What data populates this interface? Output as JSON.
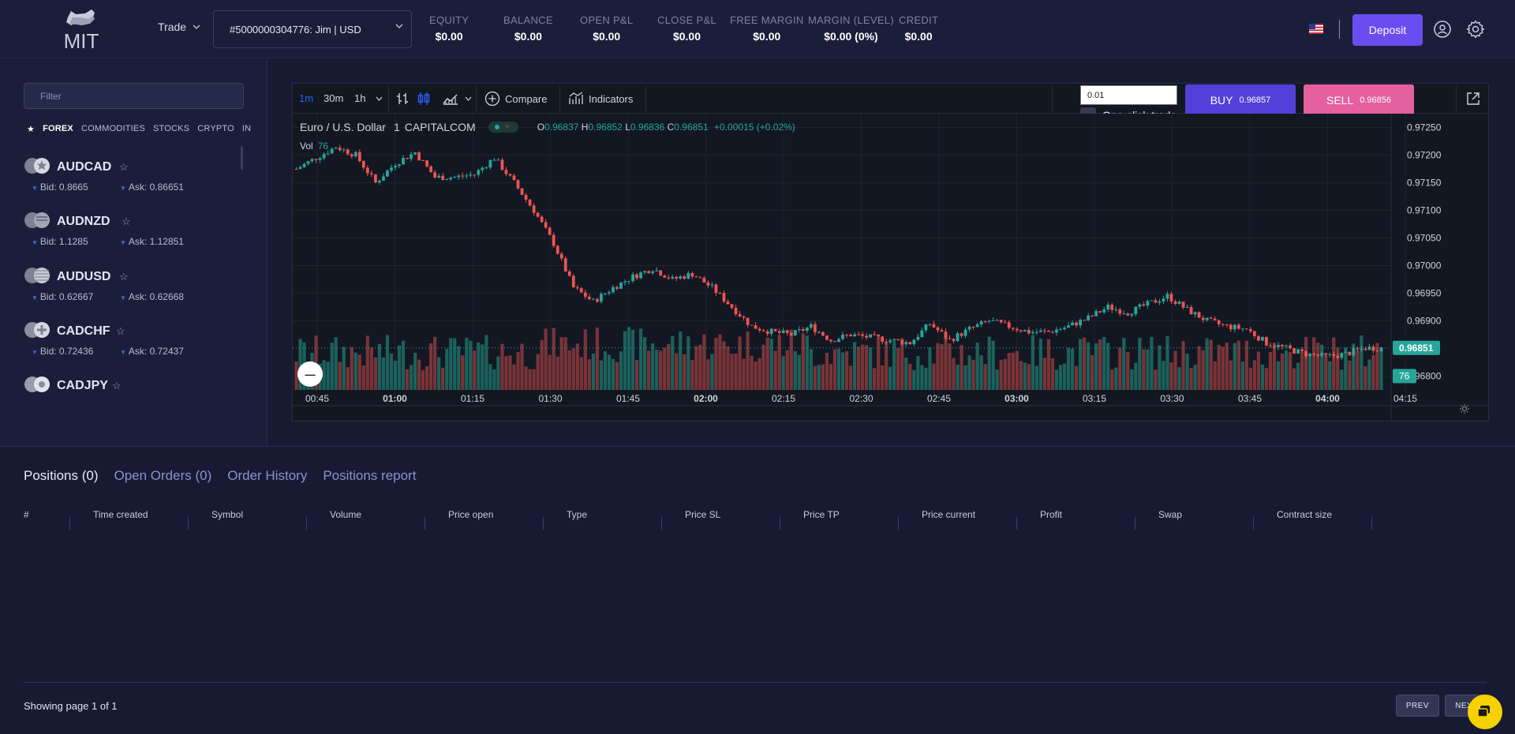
{
  "header": {
    "trade_label": "Trade",
    "account": "#5000000304776: Jim | USD",
    "stats": [
      {
        "label": "EQUITY",
        "value": "$0.00"
      },
      {
        "label": "BALANCE",
        "value": "$0.00"
      },
      {
        "label": "OPEN P&L",
        "value": "$0.00"
      },
      {
        "label": "CLOSE P&L",
        "value": "$0.00"
      },
      {
        "label": "FREE MARGIN",
        "value": "$0.00"
      },
      {
        "label": "MARGIN (LEVEL)",
        "value": "$0.00 (0%)"
      },
      {
        "label": "CREDIT",
        "value": "$0.00"
      }
    ],
    "deposit_label": "Deposit",
    "flag_icon": "us-flag-icon",
    "colors": {
      "brand": "#6a4df0",
      "background": "#1b1e3a"
    }
  },
  "logo": {
    "text": "MIT"
  },
  "sidebar": {
    "filter_placeholder": "Filter",
    "categories": [
      "FOREX",
      "COMMODITIES",
      "STOCKS",
      "CRYPTO",
      "IN"
    ],
    "active_category": "FOREX",
    "symbols": [
      {
        "name": "AUDCAD",
        "bid": "Bid: 0.8665",
        "ask": "Ask: 0.86651"
      },
      {
        "name": "AUDNZD",
        "bid": "Bid: 1.1285",
        "ask": "Ask: 1.12851"
      },
      {
        "name": "AUDUSD",
        "bid": "Bid: 0.62667",
        "ask": "Ask: 0.62668"
      },
      {
        "name": "CADCHF",
        "bid": "Bid: 0.72436",
        "ask": "Ask: 0.72437"
      },
      {
        "name": "CADJPY",
        "bid": "",
        "ask": ""
      }
    ]
  },
  "chart_toolbar": {
    "timeframes": [
      "1m",
      "30m",
      "1h"
    ],
    "active_timeframe": "1m",
    "compare_label": "Compare",
    "indicators_label": "Indicators",
    "quantity_value": "0.01",
    "one_click_label": "One-click trade",
    "buy_label": "BUY",
    "buy_price": "0.96857",
    "sell_label": "SELL",
    "sell_price": "0.96856"
  },
  "chart_legend": {
    "symbol": "Euro / U.S. Dollar",
    "interval": "1",
    "source": "CAPITALCOM",
    "o_label": "O",
    "o": "0.96837",
    "h_label": "H",
    "h": "0.96852",
    "l_label": "L",
    "l": "0.96836",
    "c_label": "C",
    "c": "0.96851",
    "change": "+0.00015 (+0.02%)",
    "vol_label": "Vol",
    "vol_value": "76"
  },
  "chart_data": {
    "type": "candlestick",
    "symbol": "Euro / U.S. Dollar",
    "interval": "1",
    "x_tick_labels": [
      "00:45",
      "01:00",
      "01:15",
      "01:30",
      "01:45",
      "02:00",
      "02:15",
      "02:30",
      "02:45",
      "03:00",
      "03:15",
      "03:30",
      "03:45",
      "04:00",
      "04:15"
    ],
    "y_tick_labels": [
      "0.97250",
      "0.97200",
      "0.97150",
      "0.97100",
      "0.97050",
      "0.97000",
      "0.96950",
      "0.96900",
      "0.96800"
    ],
    "ylim": [
      0.96775,
      0.97275
    ],
    "last_price": "0.96851",
    "last_volume": "76",
    "close_trajectory": [
      [
        0,
        0.97175
      ],
      [
        5,
        0.97195
      ],
      [
        10,
        0.97215
      ],
      [
        15,
        0.972
      ],
      [
        20,
        0.9715
      ],
      [
        25,
        0.97185
      ],
      [
        30,
        0.97205
      ],
      [
        35,
        0.9716
      ],
      [
        40,
        0.9716
      ],
      [
        45,
        0.97165
      ],
      [
        50,
        0.97195
      ],
      [
        55,
        0.9715
      ],
      [
        60,
        0.971
      ],
      [
        65,
        0.9704
      ],
      [
        70,
        0.9696
      ],
      [
        75,
        0.96935
      ],
      [
        80,
        0.9696
      ],
      [
        85,
        0.9698
      ],
      [
        90,
        0.96995
      ],
      [
        95,
        0.96975
      ],
      [
        100,
        0.96985
      ],
      [
        105,
        0.9696
      ],
      [
        110,
        0.96925
      ],
      [
        115,
        0.9689
      ],
      [
        120,
        0.9688
      ],
      [
        125,
        0.96875
      ],
      [
        130,
        0.9689
      ],
      [
        135,
        0.96865
      ],
      [
        140,
        0.96875
      ],
      [
        145,
        0.9687
      ],
      [
        150,
        0.96865
      ],
      [
        155,
        0.9686
      ],
      [
        160,
        0.96895
      ],
      [
        165,
        0.96865
      ],
      [
        170,
        0.96885
      ],
      [
        175,
        0.969
      ],
      [
        180,
        0.9689
      ],
      [
        185,
        0.9688
      ],
      [
        190,
        0.9688
      ],
      [
        195,
        0.9689
      ],
      [
        200,
        0.96905
      ],
      [
        205,
        0.96925
      ],
      [
        210,
        0.96915
      ],
      [
        215,
        0.9693
      ],
      [
        220,
        0.96945
      ],
      [
        225,
        0.9692
      ],
      [
        230,
        0.969
      ],
      [
        235,
        0.9689
      ],
      [
        240,
        0.96885
      ],
      [
        245,
        0.9686
      ],
      [
        250,
        0.9685
      ],
      [
        255,
        0.9684
      ],
      [
        260,
        0.96835
      ],
      [
        265,
        0.9684
      ],
      [
        270,
        0.96851
      ]
    ],
    "colors": {
      "up": "#26a69a",
      "down": "#ef5350",
      "background": "#131722"
    }
  },
  "positions": {
    "tabs": [
      "Positions (0)",
      "Open Orders (0)",
      "Order History",
      "Positions report"
    ],
    "active_tab": "Positions (0)",
    "columns": [
      "#",
      "Time created",
      "Symbol",
      "Volume",
      "Price open",
      "Type",
      "Price SL",
      "Price TP",
      "Price current",
      "Profit",
      "Swap",
      "Contract size"
    ],
    "rows": [],
    "showing": "Showing page 1 of 1",
    "prev_label": "PREV",
    "next_label": "NEXT"
  }
}
